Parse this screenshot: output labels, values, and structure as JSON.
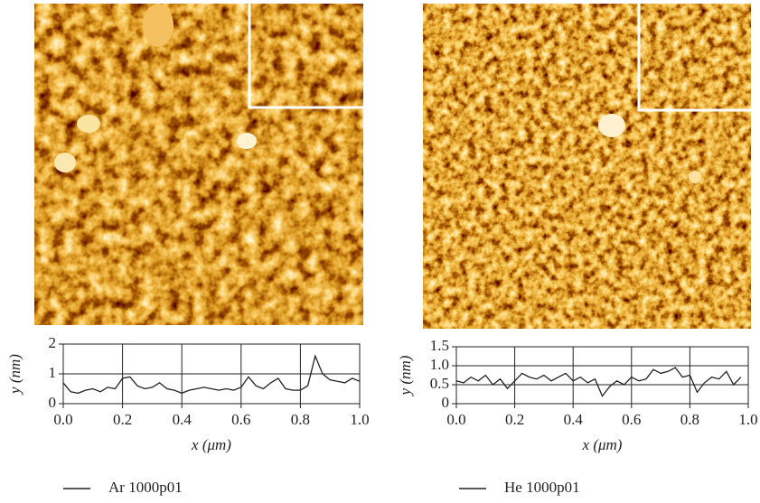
{
  "chart_data": [
    {
      "type": "line",
      "xlabel": "x (μm)",
      "ylabel": "y (nm)",
      "xlim": [
        0,
        1
      ],
      "ylim": [
        0,
        2
      ],
      "xticks": [
        {
          "value": 0,
          "label": "0.0"
        },
        0.2,
        0.4,
        0.6,
        0.8,
        {
          "value": 1,
          "label": "1.0"
        }
      ],
      "yticks": [
        0,
        1,
        2
      ],
      "grid": true,
      "x": [
        0,
        0.025,
        0.05,
        0.075,
        0.1,
        0.125,
        0.15,
        0.175,
        0.2,
        0.225,
        0.25,
        0.275,
        0.3,
        0.325,
        0.35,
        0.375,
        0.4,
        0.425,
        0.45,
        0.475,
        0.5,
        0.525,
        0.55,
        0.575,
        0.6,
        0.625,
        0.65,
        0.675,
        0.7,
        0.725,
        0.75,
        0.775,
        0.8,
        0.825,
        0.85,
        0.875,
        0.9,
        0.925,
        0.95,
        0.975,
        1.0
      ],
      "series": [
        {
          "name": "Ar 1000p01",
          "color": "#222222",
          "values": [
            0.7,
            0.4,
            0.35,
            0.45,
            0.5,
            0.4,
            0.55,
            0.5,
            0.85,
            0.9,
            0.6,
            0.5,
            0.55,
            0.7,
            0.5,
            0.45,
            0.35,
            0.45,
            0.5,
            0.55,
            0.5,
            0.45,
            0.5,
            0.45,
            0.55,
            0.9,
            0.6,
            0.5,
            0.7,
            0.85,
            0.5,
            0.45,
            0.45,
            0.6,
            1.6,
            1.0,
            0.8,
            0.75,
            0.7,
            0.85,
            0.75
          ]
        }
      ]
    },
    {
      "type": "line",
      "xlabel": "x (μm)",
      "ylabel": "y (nm)",
      "xlim": [
        0,
        1
      ],
      "ylim": [
        0,
        1.5
      ],
      "xticks": [
        {
          "value": 0,
          "label": "0.0"
        },
        0.2,
        0.4,
        0.6,
        0.8,
        {
          "value": 1,
          "label": "1.0"
        }
      ],
      "yticks": [
        0,
        0.5,
        {
          "value": 1,
          "label": "1.0"
        },
        1.5
      ],
      "grid": true,
      "x": [
        0,
        0.025,
        0.05,
        0.075,
        0.1,
        0.125,
        0.15,
        0.175,
        0.2,
        0.225,
        0.25,
        0.275,
        0.3,
        0.325,
        0.35,
        0.375,
        0.4,
        0.425,
        0.45,
        0.475,
        0.5,
        0.525,
        0.55,
        0.575,
        0.6,
        0.625,
        0.65,
        0.675,
        0.7,
        0.725,
        0.75,
        0.775,
        0.8,
        0.825,
        0.85,
        0.875,
        0.9,
        0.925,
        0.95,
        0.975
      ],
      "series": [
        {
          "name": "He 1000p01",
          "color": "#222222",
          "values": [
            0.6,
            0.55,
            0.7,
            0.6,
            0.75,
            0.5,
            0.65,
            0.4,
            0.6,
            0.8,
            0.7,
            0.65,
            0.75,
            0.6,
            0.7,
            0.8,
            0.6,
            0.7,
            0.55,
            0.65,
            0.2,
            0.45,
            0.6,
            0.5,
            0.7,
            0.6,
            0.65,
            0.9,
            0.8,
            0.85,
            0.95,
            0.7,
            0.75,
            0.3,
            0.55,
            0.7,
            0.65,
            0.85,
            0.5,
            0.7
          ]
        }
      ]
    }
  ]
}
